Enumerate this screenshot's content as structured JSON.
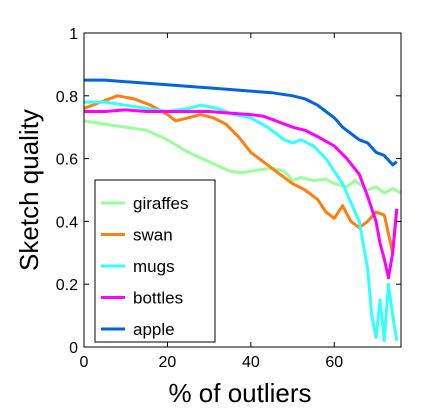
{
  "chart_data": {
    "type": "line",
    "title": "",
    "xlabel": "% of outliers",
    "ylabel": "Sketch quality",
    "xlim": [
      0,
      76
    ],
    "ylim": [
      0,
      1
    ],
    "xticks": [
      0,
      20,
      40,
      60
    ],
    "yticks": [
      0,
      0.2,
      0.4,
      0.6,
      0.8,
      1
    ],
    "xtick_labels": [
      "0",
      "20",
      "40",
      "60"
    ],
    "ytick_labels": [
      "0",
      "0.2",
      "0.4",
      "0.6",
      "0.8",
      "1"
    ],
    "grid": false,
    "legend_position": "bottom-left",
    "series": [
      {
        "name": "giraffes",
        "color": "#99ff99",
        "x": [
          0,
          5,
          10,
          15,
          20,
          25,
          30,
          35,
          38,
          40,
          45,
          48,
          50,
          52,
          55,
          58,
          60,
          63,
          65,
          68,
          70,
          72,
          74,
          76
        ],
        "y": [
          0.72,
          0.71,
          0.7,
          0.69,
          0.66,
          0.62,
          0.59,
          0.56,
          0.555,
          0.56,
          0.57,
          0.56,
          0.53,
          0.54,
          0.53,
          0.535,
          0.52,
          0.51,
          0.53,
          0.5,
          0.51,
          0.49,
          0.505,
          0.49
        ]
      },
      {
        "name": "swan",
        "color": "#ff7f0e",
        "x": [
          0,
          4,
          8,
          12,
          16,
          20,
          22,
          25,
          28,
          31,
          34,
          37,
          40,
          44,
          47,
          50,
          53,
          56,
          58,
          60,
          62,
          64,
          66,
          68,
          70,
          72,
          74,
          75
        ],
        "y": [
          0.76,
          0.78,
          0.8,
          0.79,
          0.77,
          0.74,
          0.72,
          0.73,
          0.74,
          0.73,
          0.71,
          0.67,
          0.62,
          0.58,
          0.55,
          0.52,
          0.5,
          0.47,
          0.43,
          0.41,
          0.45,
          0.4,
          0.38,
          0.4,
          0.43,
          0.42,
          0.3,
          0.44
        ]
      },
      {
        "name": "mugs",
        "color": "#33ffff",
        "x": [
          0,
          5,
          10,
          15,
          20,
          25,
          28,
          32,
          36,
          40,
          44,
          46,
          48,
          50,
          52,
          55,
          58,
          60,
          62,
          64,
          66,
          68,
          69,
          70,
          71,
          72,
          73,
          74,
          75
        ],
        "y": [
          0.78,
          0.78,
          0.77,
          0.76,
          0.75,
          0.76,
          0.77,
          0.76,
          0.74,
          0.73,
          0.7,
          0.68,
          0.66,
          0.65,
          0.66,
          0.64,
          0.6,
          0.56,
          0.52,
          0.46,
          0.4,
          0.25,
          0.1,
          0.03,
          0.15,
          0.02,
          0.2,
          0.1,
          0.02
        ]
      },
      {
        "name": "bottles",
        "color": "#ff00ff",
        "x": [
          0,
          5,
          10,
          15,
          20,
          25,
          30,
          35,
          40,
          43,
          46,
          50,
          53,
          56,
          60,
          63,
          66,
          68,
          70,
          71,
          72,
          73,
          74,
          75
        ],
        "y": [
          0.75,
          0.75,
          0.755,
          0.75,
          0.75,
          0.75,
          0.75,
          0.745,
          0.74,
          0.735,
          0.72,
          0.7,
          0.69,
          0.67,
          0.64,
          0.6,
          0.55,
          0.48,
          0.4,
          0.33,
          0.28,
          0.22,
          0.3,
          0.44
        ]
      },
      {
        "name": "apple",
        "color": "#0066dd",
        "x": [
          0,
          5,
          10,
          15,
          20,
          25,
          30,
          35,
          40,
          45,
          50,
          53,
          56,
          58,
          60,
          62,
          64,
          66,
          68,
          70,
          72,
          74,
          75
        ],
        "y": [
          0.85,
          0.85,
          0.845,
          0.84,
          0.835,
          0.83,
          0.825,
          0.82,
          0.815,
          0.81,
          0.8,
          0.79,
          0.77,
          0.75,
          0.73,
          0.7,
          0.68,
          0.66,
          0.65,
          0.62,
          0.61,
          0.58,
          0.59
        ]
      }
    ]
  }
}
